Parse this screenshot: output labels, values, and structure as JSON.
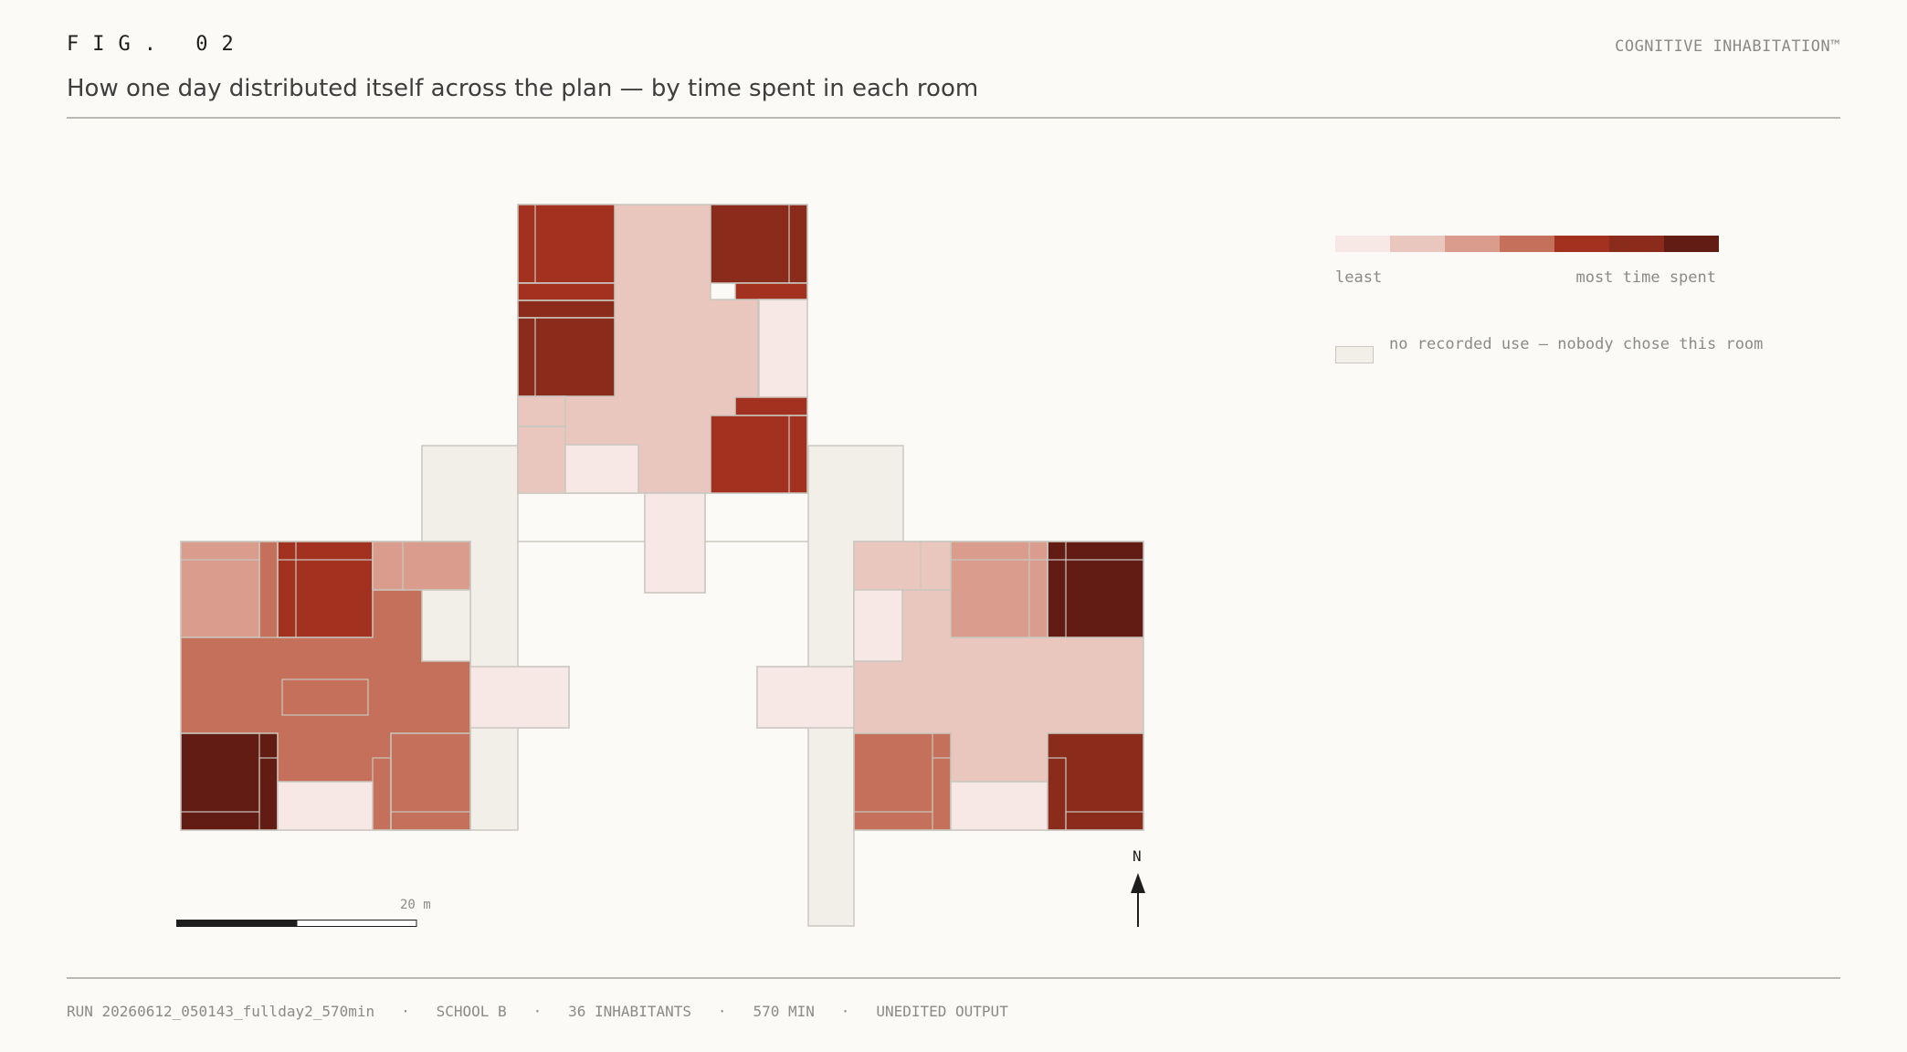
{
  "header": {
    "fig_label": "FIG. 02",
    "brand": "COGNITIVE INHABITATION™",
    "subtitle": "How one day distributed itself across the plan — by time spent in each room"
  },
  "scale_bar": {
    "label": "20 m"
  },
  "north_arrow": {
    "label": "N"
  },
  "legend": {
    "least_label": "least",
    "most_label": "most time spent",
    "no_use_label": "no recorded use — nobody chose this room",
    "colors": [
      "#f7e8e5",
      "#eac7be",
      "#d99c8d",
      "#c4705a",
      "#a33120",
      "#8b2b1c",
      "#631c14"
    ],
    "no_use_color": "#f1efe7"
  },
  "footer": {
    "run": "RUN 20260612_050143_fullday2_570min",
    "school": "SCHOOL B",
    "inhabitants": "36 INHABITANTS",
    "duration": "570 MIN",
    "status": "UNEDITED OUTPUT",
    "separator": "·"
  },
  "floor_plan": {
    "wings": [
      "north",
      "west",
      "east"
    ],
    "rooms": [
      {
        "id": "corridor-main",
        "level": "none"
      },
      {
        "id": "n-atrium",
        "level": 1
      },
      {
        "id": "n-stair-link",
        "level": 0
      },
      {
        "id": "n-room-nw",
        "level": 4
      },
      {
        "id": "n-strip-1",
        "level": 4
      },
      {
        "id": "n-strip-2",
        "level": 5
      },
      {
        "id": "n-room-w2",
        "level": 5
      },
      {
        "id": "n-small-1",
        "level": 1
      },
      {
        "id": "n-small-2",
        "level": 1
      },
      {
        "id": "n-room-sw",
        "level": 0
      },
      {
        "id": "n-room-ne",
        "level": 5
      },
      {
        "id": "n-strip-ne",
        "level": 4
      },
      {
        "id": "n-side-e",
        "level": 0
      },
      {
        "id": "n-strip-se",
        "level": 4
      },
      {
        "id": "n-room-se",
        "level": 4
      },
      {
        "id": "w-hall",
        "level": 3
      },
      {
        "id": "w-room-nw",
        "level": 2
      },
      {
        "id": "w-room-n",
        "level": 4
      },
      {
        "id": "w-room-ne",
        "level": 2
      },
      {
        "id": "w-void",
        "level": "none"
      },
      {
        "id": "w-room-sw",
        "level": 6
      },
      {
        "id": "w-room-s",
        "level": 0
      },
      {
        "id": "w-room-se",
        "level": 3
      },
      {
        "id": "w-annex",
        "level": 0
      },
      {
        "id": "e-hall",
        "level": 1
      },
      {
        "id": "e-room-nw",
        "level": 1
      },
      {
        "id": "e-room-n",
        "level": 2
      },
      {
        "id": "e-room-ne",
        "level": 6
      },
      {
        "id": "e-side",
        "level": 0
      },
      {
        "id": "e-room-sw",
        "level": 3
      },
      {
        "id": "e-room-s",
        "level": 0
      },
      {
        "id": "e-room-se",
        "level": 5
      },
      {
        "id": "e-annex",
        "level": 0
      }
    ]
  }
}
